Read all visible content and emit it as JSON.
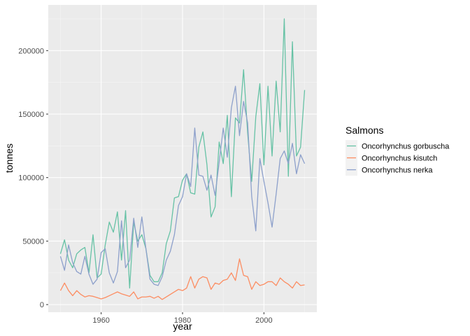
{
  "chart_data": {
    "type": "line",
    "title": "",
    "xlabel": "year",
    "ylabel": "tonnes",
    "xlim": [
      1947,
      2013
    ],
    "ylim": [
      -6000,
      236000
    ],
    "xticks": [
      1960,
      1980,
      2000
    ],
    "yticks": [
      0,
      50000,
      100000,
      150000,
      200000
    ],
    "ytick_labels": [
      "0",
      "50000",
      "100000",
      "150000",
      "200000"
    ],
    "grid": true,
    "legend": {
      "title": "Salmons",
      "position": "right"
    },
    "x": [
      1950,
      1951,
      1952,
      1953,
      1954,
      1955,
      1956,
      1957,
      1958,
      1959,
      1960,
      1961,
      1962,
      1963,
      1964,
      1965,
      1966,
      1967,
      1968,
      1969,
      1970,
      1971,
      1972,
      1973,
      1974,
      1975,
      1976,
      1977,
      1978,
      1979,
      1980,
      1981,
      1982,
      1983,
      1984,
      1985,
      1986,
      1987,
      1988,
      1989,
      1990,
      1991,
      1992,
      1993,
      1994,
      1995,
      1996,
      1997,
      1998,
      1999,
      2000,
      2001,
      2002,
      2003,
      2004,
      2005,
      2006,
      2007,
      2008,
      2009,
      2010
    ],
    "series": [
      {
        "name": "Oncorhynchus gorbuscha",
        "color": "#66c2a5",
        "values": [
          40000,
          51000,
          35000,
          29000,
          40000,
          43000,
          45000,
          25000,
          55000,
          21000,
          24000,
          47000,
          65000,
          57000,
          73000,
          35000,
          74000,
          13000,
          65000,
          50000,
          55000,
          44000,
          23000,
          18000,
          18000,
          25000,
          48000,
          58000,
          84000,
          85000,
          98000,
          103000,
          88000,
          87000,
          124000,
          136000,
          110000,
          69000,
          77000,
          128000,
          111000,
          149000,
          85000,
          147000,
          143000,
          185000,
          135000,
          97000,
          148000,
          174000,
          110000,
          172000,
          117000,
          176000,
          136000,
          225000,
          101000,
          207000,
          117000,
          124000,
          169000
        ]
      },
      {
        "name": "Oncorhynchus kisutch",
        "color": "#fc8d62",
        "values": [
          11000,
          17000,
          11000,
          7000,
          11000,
          8000,
          6000,
          7000,
          6500,
          5500,
          4500,
          5500,
          7000,
          8500,
          10000,
          8500,
          7500,
          6500,
          10000,
          4500,
          6000,
          6000,
          6500,
          5000,
          6500,
          4000,
          6000,
          8000,
          10000,
          12000,
          11000,
          13000,
          22000,
          13000,
          20000,
          22000,
          21000,
          12000,
          17000,
          16000,
          19000,
          20000,
          25000,
          19000,
          36000,
          23000,
          22000,
          12000,
          18000,
          15000,
          16000,
          18000,
          18000,
          15000,
          21000,
          18000,
          16000,
          13000,
          18000,
          15000,
          15500
        ]
      },
      {
        "name": "Oncorhynchus nerka",
        "color": "#8da0cb",
        "values": [
          38000,
          27000,
          47000,
          33000,
          26000,
          24000,
          38000,
          24000,
          16000,
          20000,
          41000,
          44000,
          25000,
          17000,
          26000,
          66000,
          29000,
          35000,
          68000,
          45000,
          69000,
          44000,
          20000,
          16000,
          15000,
          22000,
          35000,
          42000,
          55000,
          78000,
          85000,
          103000,
          93000,
          139000,
          102000,
          101000,
          90000,
          102000,
          86000,
          112000,
          139000,
          116000,
          155000,
          172000,
          133000,
          160000,
          143000,
          85000,
          58000,
          115000,
          97000,
          80000,
          61000,
          87000,
          115000,
          121000,
          111000,
          127000,
          103000,
          118000,
          111000
        ]
      }
    ]
  }
}
